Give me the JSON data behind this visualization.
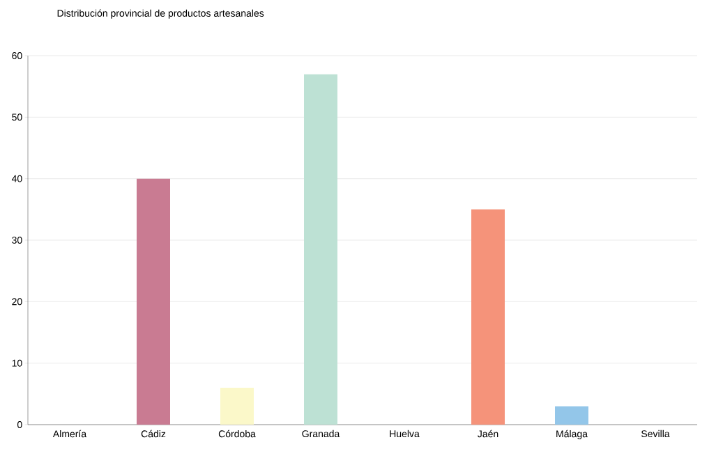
{
  "chart_data": {
    "type": "bar",
    "title": "Distribución provincial de productos artesanales",
    "categories": [
      "Almería",
      "Cádiz",
      "Córdoba",
      "Granada",
      "Huelva",
      "Jaén",
      "Málaga",
      "Sevilla"
    ],
    "values": [
      0,
      40,
      6,
      57,
      0,
      35,
      3,
      0
    ],
    "colors": [
      "#e8c4e0",
      "#c97b92",
      "#fbf8c9",
      "#bde1d4",
      "#8955a5",
      "#f5937a",
      "#93c6e9",
      "#b6aed6"
    ],
    "ylim": [
      0,
      60
    ],
    "yticks": [
      0,
      10,
      20,
      30,
      40,
      50,
      60
    ],
    "grid": "y"
  }
}
